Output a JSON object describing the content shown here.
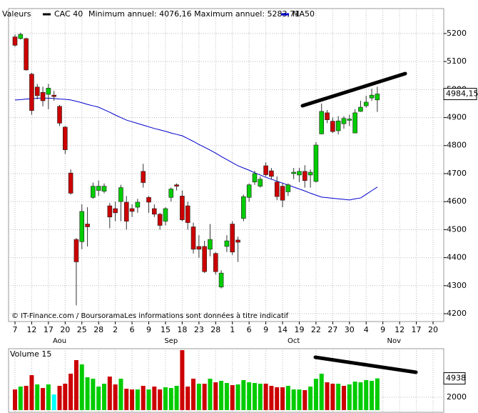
{
  "chart_data": {
    "type": "candlestick",
    "legend_label": "Valeurs",
    "name": "CAC 40",
    "color": "#000000",
    "up_color": "#00cc00",
    "down_color": "#cc0000",
    "annual_range": "Minimum annuel: 4076,16 Maximum annuel: 5283,71",
    "credit": "© IT-Finance.com / BoursoramaLes informations sont données à titre indicatif",
    "categories": [
      "7",
      null,
      null,
      "12",
      null,
      null,
      "17",
      null,
      null,
      "20",
      null,
      null,
      "25",
      null,
      null,
      "28",
      null,
      null,
      "2",
      null,
      null,
      "6",
      null,
      null,
      "9",
      null,
      null,
      "15",
      null,
      null,
      "18",
      null,
      null,
      "23",
      null,
      null,
      "28",
      null,
      null,
      "1",
      null,
      null,
      "6",
      null,
      null,
      "9",
      null,
      null,
      "14",
      null,
      null,
      "19",
      null,
      null,
      "22",
      null,
      null,
      "27",
      null,
      null,
      "30",
      null,
      null,
      "4",
      null,
      null,
      "9",
      null,
      null,
      "12",
      null,
      null,
      "17",
      null,
      null,
      "20"
    ],
    "months": [
      {
        "label": "Aou",
        "index": 8
      },
      {
        "label": "Sep",
        "index": 28
      },
      {
        "label": "Oct",
        "index": 50
      },
      {
        "label": "Nov",
        "index": 68
      }
    ],
    "open": [
      5188,
      5182,
      5182,
      5055,
      5009,
      4990,
      4983,
      4980,
      4940,
      4866,
      4702,
      4465,
      4457,
      4520,
      4615,
      4640,
      4637,
      4585,
      4575,
      4600,
      4598,
      4575,
      4580,
      4708,
      4615,
      4575,
      4555,
      4530,
      4615,
      4660,
      4620,
      4585,
      4510,
      4440,
      4440,
      4430,
      4415,
      4295,
      4440,
      4520,
      4463,
      4540,
      4615,
      4670,
      4655,
      4728,
      4710,
      4670,
      4655,
      4635,
      4700,
      4695,
      4708,
      4695,
      4672,
      4842,
      4917,
      4887,
      4853,
      4878,
      4890,
      4845,
      4922,
      4942,
      4970,
      4963,
      null,
      null,
      null,
      null,
      null,
      null,
      null,
      null,
      null,
      null
    ],
    "high": [
      5197,
      5203,
      5185,
      5060,
      5020,
      5010,
      5020,
      4995,
      4945,
      4870,
      4715,
      4470,
      4590,
      4580,
      4668,
      4675,
      4665,
      4595,
      4600,
      4660,
      4620,
      4590,
      4610,
      4735,
      4620,
      4590,
      4560,
      4580,
      4650,
      4665,
      4640,
      4600,
      4525,
      4480,
      4460,
      4520,
      4420,
      4355,
      4480,
      4530,
      4475,
      4625,
      4665,
      4710,
      4690,
      4740,
      4720,
      4690,
      4665,
      4665,
      4720,
      4720,
      4730,
      4715,
      4812,
      4950,
      4927,
      4900,
      4905,
      4905,
      4910,
      4930,
      4960,
      4978,
      5003,
      5010,
      null,
      null,
      null,
      null,
      null,
      null,
      null,
      null,
      null,
      null
    ],
    "low": [
      5153,
      5178,
      5068,
      4910,
      4965,
      4940,
      4930,
      4960,
      4870,
      4770,
      4625,
      4230,
      4430,
      4440,
      4610,
      4620,
      4630,
      4505,
      4530,
      4530,
      4500,
      4545,
      4560,
      4650,
      4560,
      4545,
      4500,
      4515,
      4600,
      4640,
      4530,
      4500,
      4415,
      4400,
      4345,
      4405,
      4340,
      4290,
      4420,
      4410,
      4385,
      4530,
      4600,
      4660,
      4650,
      4690,
      4680,
      4605,
      4580,
      4620,
      4680,
      4670,
      4650,
      4650,
      4668,
      4840,
      4880,
      4845,
      4840,
      4860,
      4870,
      4845,
      4920,
      4935,
      4960,
      4920,
      null,
      null,
      null,
      null,
      null,
      null,
      null,
      null,
      null,
      null
    ],
    "close": [
      5158,
      5197,
      5070,
      4925,
      4978,
      4960,
      5005,
      4975,
      4880,
      4785,
      4630,
      4385,
      4565,
      4510,
      4655,
      4655,
      4655,
      4545,
      4560,
      4650,
      4530,
      4565,
      4598,
      4668,
      4598,
      4555,
      4515,
      4575,
      4645,
      4655,
      4535,
      4525,
      4430,
      4430,
      4350,
      4465,
      4350,
      4345,
      4460,
      4420,
      4455,
      4618,
      4660,
      4700,
      4680,
      4696,
      4690,
      4618,
      4605,
      4660,
      4705,
      4708,
      4675,
      4705,
      4802,
      4922,
      4892,
      4850,
      4888,
      4897,
      4895,
      4917,
      4937,
      4955,
      4980,
      4984.15,
      null,
      null,
      null,
      null,
      null,
      null,
      null,
      null,
      null,
      null
    ],
    "last_close_label": "4984,15",
    "ma": {
      "name": "MA50",
      "color": "#0000cc",
      "values": [
        4963,
        4964,
        4966,
        4967,
        4969,
        4970,
        4969,
        4968,
        4966,
        4965,
        4963,
        4958,
        4953,
        4947,
        4942,
        4937,
        4928,
        4919,
        4909,
        4900,
        4891,
        4885,
        4879,
        4873,
        4867,
        4861,
        4856,
        4851,
        4845,
        4840,
        4835,
        4825,
        4815,
        4804,
        4794,
        4784,
        4773,
        4761,
        4750,
        4739,
        4728,
        4720,
        4712,
        4703,
        4695,
        4687,
        4680,
        4673,
        4666,
        4659,
        4652,
        4645,
        4638,
        4630,
        4623,
        4616,
        4614,
        4612,
        4610,
        4608,
        4606,
        4610,
        4613,
        4626,
        4639,
        4652,
        null,
        null,
        null,
        null,
        null,
        null,
        null,
        null,
        null,
        null
      ]
    },
    "ylim": [
      4172,
      5289
    ],
    "yticks": [
      4200,
      4300,
      4400,
      4500,
      4600,
      4700,
      4800,
      4900,
      5000,
      5100,
      5200
    ],
    "grid": true,
    "volume": {
      "title": "Volume 15",
      "values": [
        3220,
        3670,
        3780,
        5440,
        4000,
        3440,
        4000,
        2440,
        3780,
        4110,
        5670,
        7780,
        7110,
        5110,
        4890,
        3670,
        4110,
        5220,
        4000,
        4890,
        3330,
        3220,
        3220,
        3780,
        3220,
        3670,
        3220,
        3560,
        3440,
        3780,
        9330,
        3670,
        4890,
        4110,
        4110,
        4890,
        4330,
        4560,
        4220,
        3890,
        4000,
        4670,
        4330,
        4220,
        4110,
        4110,
        3780,
        3560,
        3560,
        3780,
        3220,
        3220,
        3110,
        3670,
        4890,
        5670,
        4330,
        4110,
        4110,
        3780,
        4000,
        4440,
        4330,
        4670,
        4560,
        4938,
        null,
        null,
        null,
        null,
        null,
        null,
        null,
        null,
        null,
        null
      ],
      "colors": [
        "#cc0000",
        "#00cc00",
        "#cc0000",
        "#cc0000",
        "#00cc00",
        "#cc0000",
        "#00cc00",
        "#00ffff",
        "#cc0000",
        "#cc0000",
        "#cc0000",
        "#cc0000",
        "#00cc00",
        "#00cc00",
        "#00cc00",
        "#00cc00",
        "#00cc00",
        "#cc0000",
        "#cc0000",
        "#00cc00",
        "#cc0000",
        "#cc0000",
        "#00cc00",
        "#cc0000",
        "#00cc00",
        "#cc0000",
        "#cc0000",
        "#00cc00",
        "#00cc00",
        "#00cc00",
        "#cc0000",
        "#cc0000",
        "#cc0000",
        "#00cc00",
        "#cc0000",
        "#00cc00",
        "#cc0000",
        "#00cc00",
        "#00cc00",
        "#cc0000",
        "#00cc00",
        "#00cc00",
        "#00cc00",
        "#00cc00",
        "#00cc00",
        "#cc0000",
        "#cc0000",
        "#cc0000",
        "#cc0000",
        "#00cc00",
        "#00cc00",
        "#00cc00",
        "#cc0000",
        "#00cc00",
        "#00cc00",
        "#00cc00",
        "#cc0000",
        "#cc0000",
        "#00cc00",
        "#cc0000",
        "#00cc00",
        "#00cc00",
        "#00cc00",
        "#00cc00",
        "#00cc00",
        "#00cc00",
        null,
        null,
        null,
        null,
        null,
        null,
        null,
        null,
        null,
        null
      ],
      "last_label": "4938",
      "ylim": [
        0,
        9556
      ],
      "yticks": [
        2000
      ]
    }
  }
}
